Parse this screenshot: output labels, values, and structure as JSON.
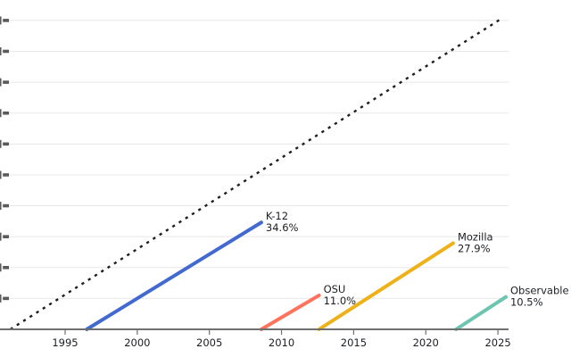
{
  "chart_data": {
    "type": "line",
    "title": "",
    "description": "Cumulative percent-of-life line segments per organization versus a dotted full-life reference line",
    "legend_position": "inline-end-of-line-labels",
    "grid": true,
    "x_axis": {
      "ticks": [
        "1995",
        "2000",
        "2005",
        "2010",
        "2015",
        "2020",
        "2025"
      ],
      "tick_years": [
        1995,
        2000,
        2005,
        2010,
        2015,
        2020,
        2025
      ],
      "domain_visible": [
        1990.5,
        2025.7
      ]
    },
    "y_axis": {
      "domain": [
        0,
        110
      ],
      "gridline_step_percent": 10,
      "gridline_count": 10,
      "tick_labels": "clipped-off-left-edge"
    },
    "reference_line": {
      "name": "life-reference",
      "style": "dotted",
      "color": "#1b1e23",
      "points": [
        [
          1991.2,
          0.0
        ],
        [
          2025.35,
          100.9
        ]
      ]
    },
    "series": [
      {
        "name": "K-12",
        "value_label": "34.6%",
        "color": "#4269d0",
        "start_year": 1996.5,
        "end_year": 2008.6,
        "start_value": 0,
        "end_value": 34.6
      },
      {
        "name": "OSU",
        "value_label": "11.0%",
        "color": "#ff725c",
        "start_year": 2008.6,
        "end_year": 2012.6,
        "start_value": 0,
        "end_value": 11.0
      },
      {
        "name": "Mozilla",
        "value_label": "27.9%",
        "color": "#efb118",
        "start_year": 2012.6,
        "end_year": 2021.9,
        "start_value": 0,
        "end_value": 27.9
      },
      {
        "name": "Observable",
        "value_label": "10.5%",
        "color": "#6cc5b0",
        "start_year": 2022.1,
        "end_year": 2025.55,
        "start_value": 0,
        "end_value": 10.5
      }
    ],
    "colors": {
      "gridline": "#e8e8e8",
      "axis": "#707070",
      "text": "#1b1e23",
      "clipped_label_fragment": "#5a5a5a"
    }
  }
}
